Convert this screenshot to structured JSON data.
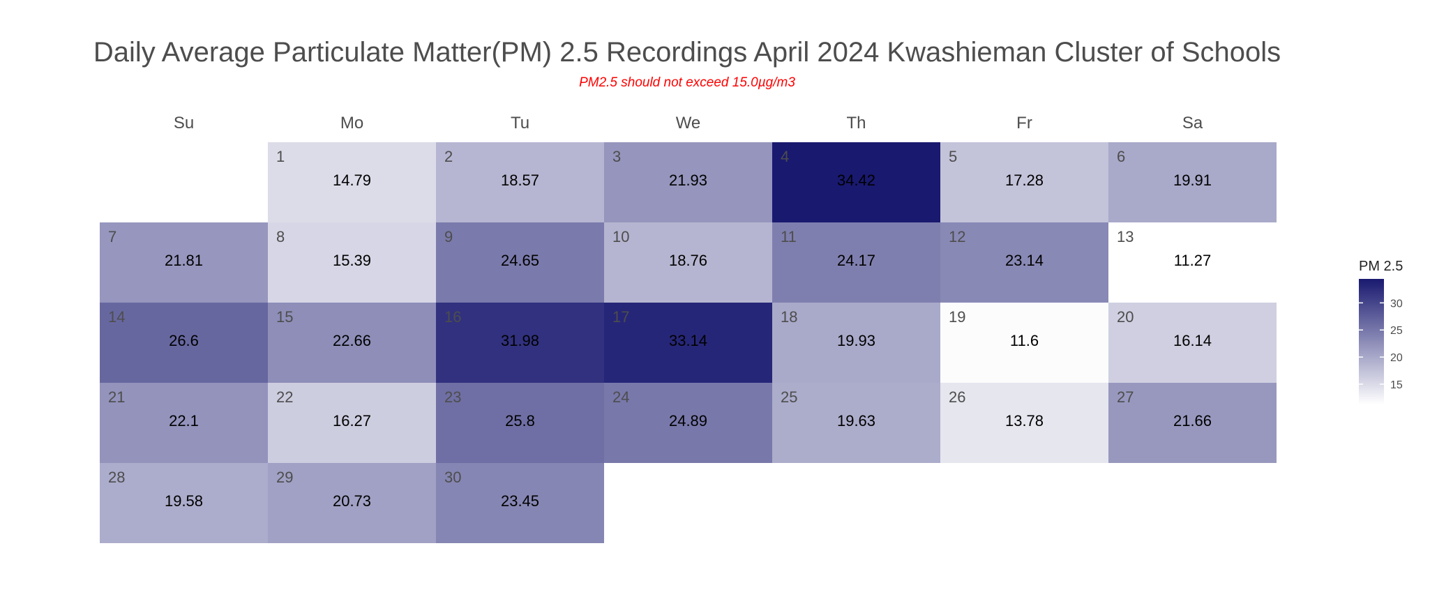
{
  "chart_data": {
    "type": "heatmap",
    "title": "Daily Average Particulate Matter(PM) 2.5 Recordings April 2024 Kwashieman Cluster of Schools",
    "subtitle": "PM2.5 should not exceed 15.0µg/m3",
    "weekdays": [
      "Su",
      "Mo",
      "Tu",
      "We",
      "Th",
      "Fr",
      "Sa"
    ],
    "first_weekday_index": 1,
    "days": [
      {
        "day": 1,
        "value": "14.79"
      },
      {
        "day": 2,
        "value": "18.57"
      },
      {
        "day": 3,
        "value": "21.93"
      },
      {
        "day": 4,
        "value": "34.42"
      },
      {
        "day": 5,
        "value": "17.28"
      },
      {
        "day": 6,
        "value": "19.91"
      },
      {
        "day": 7,
        "value": "21.81"
      },
      {
        "day": 8,
        "value": "15.39"
      },
      {
        "day": 9,
        "value": "24.65"
      },
      {
        "day": 10,
        "value": "18.76"
      },
      {
        "day": 11,
        "value": "24.17"
      },
      {
        "day": 12,
        "value": "23.14"
      },
      {
        "day": 13,
        "value": "11.27"
      },
      {
        "day": 14,
        "value": "26.6"
      },
      {
        "day": 15,
        "value": "22.66"
      },
      {
        "day": 16,
        "value": "31.98"
      },
      {
        "day": 17,
        "value": "33.14"
      },
      {
        "day": 18,
        "value": "19.93"
      },
      {
        "day": 19,
        "value": "11.6"
      },
      {
        "day": 20,
        "value": "16.14"
      },
      {
        "day": 21,
        "value": "22.1"
      },
      {
        "day": 22,
        "value": "16.27"
      },
      {
        "day": 23,
        "value": "25.8"
      },
      {
        "day": 24,
        "value": "24.89"
      },
      {
        "day": 25,
        "value": "19.63"
      },
      {
        "day": 26,
        "value": "13.78"
      },
      {
        "day": 27,
        "value": "21.66"
      },
      {
        "day": 28,
        "value": "19.58"
      },
      {
        "day": 29,
        "value": "20.73"
      },
      {
        "day": 30,
        "value": "23.45"
      }
    ],
    "legend": {
      "title": "PM 2.5",
      "ticks": [
        15,
        20,
        25,
        30
      ],
      "range": [
        11.27,
        34.42
      ]
    },
    "color_low": "#ffffff",
    "color_high": "#191970"
  }
}
